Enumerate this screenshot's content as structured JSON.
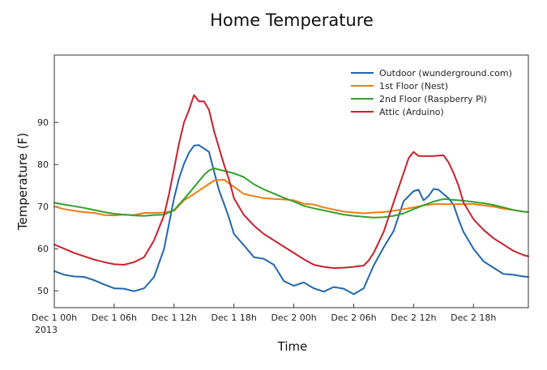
{
  "chart_data": {
    "type": "line",
    "title": "Home Temperature",
    "xlabel": "Time",
    "ylabel": "Temperature (F)",
    "xlim": [
      0,
      47.5
    ],
    "ylim": [
      46,
      106
    ],
    "x_unit": "hours since Dec 1 00h 2013",
    "x_ticks": [
      {
        "x": 0,
        "label": "Dec 1 00h",
        "sublabel": "2013"
      },
      {
        "x": 6,
        "label": "Dec 1 06h"
      },
      {
        "x": 12,
        "label": "Dec 1 12h"
      },
      {
        "x": 18,
        "label": "Dec 1 18h"
      },
      {
        "x": 24,
        "label": "Dec 2 00h"
      },
      {
        "x": 30,
        "label": "Dec 2 06h"
      },
      {
        "x": 36,
        "label": "Dec 2 12h"
      },
      {
        "x": 42,
        "label": "Dec 2 18h"
      }
    ],
    "y_ticks": [
      50,
      60,
      70,
      80,
      90
    ],
    "legend_position": "top-right",
    "series": [
      {
        "name": "Outdoor (wunderground.com)",
        "color": "#2166ac",
        "x": [
          0,
          1,
          2,
          3,
          4,
          5,
          6,
          7,
          8,
          9,
          10,
          11,
          11.5,
          12,
          12.5,
          13,
          13.5,
          14,
          14.5,
          15,
          15.5,
          16,
          16.5,
          17,
          17.5,
          18,
          19,
          20,
          21,
          22,
          23,
          24,
          25,
          26,
          27,
          28,
          29,
          30,
          31,
          31.5,
          32,
          33,
          34,
          35,
          36,
          36.5,
          37,
          37.5,
          38,
          38.5,
          39,
          39.5,
          40,
          40.5,
          41,
          42,
          43,
          44,
          45,
          46,
          47,
          47.5
        ],
        "y": [
          54.7,
          53.8,
          53.4,
          53.3,
          52.5,
          51.5,
          50.6,
          50.5,
          49.9,
          50.6,
          53.3,
          60.0,
          66.0,
          72.0,
          76.7,
          80.2,
          82.8,
          84.5,
          84.6,
          83.8,
          83.0,
          78.4,
          73.9,
          70.7,
          67.4,
          63.5,
          60.8,
          58.0,
          57.6,
          56.2,
          52.3,
          51.2,
          52.0,
          50.6,
          49.8,
          50.9,
          50.5,
          49.2,
          50.6,
          53.3,
          56.0,
          60.3,
          64.2,
          71.3,
          73.7,
          74.0,
          71.5,
          72.5,
          74.2,
          74.0,
          73.0,
          72.0,
          70.5,
          67.0,
          64.0,
          60.0,
          57.0,
          55.5,
          54.0,
          53.8,
          53.4,
          53.3
        ]
      },
      {
        "name": "1st Floor (Nest)",
        "color": "#ef7d0e",
        "x": [
          0,
          1,
          2,
          3,
          4,
          5,
          6,
          7,
          8,
          9,
          10,
          11,
          12,
          13,
          14,
          15,
          16,
          17,
          18,
          19,
          20,
          21,
          22,
          23,
          24,
          25,
          26,
          27,
          28,
          29,
          30,
          31,
          32,
          33,
          34,
          35,
          36,
          37,
          38,
          39,
          40,
          41,
          42,
          43,
          44,
          45,
          46,
          47,
          47.5
        ],
        "y": [
          70.0,
          69.4,
          69.0,
          68.7,
          68.5,
          68.0,
          67.9,
          68.1,
          68.0,
          68.5,
          68.5,
          68.6,
          69.0,
          71.5,
          73.0,
          74.6,
          76.2,
          76.4,
          74.7,
          73.0,
          72.5,
          72.0,
          71.8,
          71.7,
          71.5,
          70.7,
          70.5,
          69.8,
          69.3,
          68.8,
          68.6,
          68.4,
          68.6,
          68.7,
          69.0,
          69.4,
          69.8,
          70.3,
          70.6,
          70.6,
          70.6,
          70.6,
          70.6,
          70.3,
          70.0,
          69.5,
          69.2,
          68.8,
          68.7
        ]
      },
      {
        "name": "2nd Floor (Raspberry Pi)",
        "color": "#33a02c",
        "x": [
          0,
          1,
          2,
          3,
          4,
          5,
          6,
          7,
          8,
          9,
          10,
          11,
          12,
          13,
          14,
          15,
          15.5,
          16,
          17,
          18,
          19,
          20,
          21,
          22,
          23,
          24,
          25,
          26,
          27,
          28,
          29,
          30,
          31,
          32,
          33,
          34,
          35,
          36,
          37,
          38,
          39,
          40,
          41,
          42,
          43,
          44,
          45,
          46,
          47,
          47.5
        ],
        "y": [
          70.9,
          70.5,
          70.1,
          69.7,
          69.2,
          68.7,
          68.3,
          68.1,
          67.9,
          67.8,
          68.0,
          68.1,
          69.2,
          71.8,
          74.6,
          77.5,
          78.6,
          79.1,
          78.5,
          77.9,
          77.0,
          75.3,
          74.1,
          73.1,
          72.1,
          71.2,
          70.2,
          69.6,
          69.1,
          68.6,
          68.1,
          67.8,
          67.6,
          67.4,
          67.5,
          67.8,
          68.4,
          69.4,
          70.3,
          71.2,
          71.8,
          71.6,
          71.4,
          71.1,
          70.8,
          70.4,
          69.8,
          69.2,
          68.8,
          68.7
        ]
      },
      {
        "name": "Attic (Arduino)",
        "color": "#c8202c",
        "x": [
          0,
          1,
          2,
          3,
          4,
          5,
          6,
          7,
          8,
          9,
          10,
          11,
          11.5,
          12,
          12.5,
          13,
          13.5,
          14,
          14.5,
          15,
          15.5,
          16,
          16.5,
          17,
          17.5,
          18,
          19,
          20,
          21,
          22,
          23,
          24,
          25,
          26,
          27,
          28,
          29,
          30,
          31,
          31.5,
          32,
          33,
          34,
          35,
          35.5,
          36,
          36.5,
          37,
          38,
          39,
          39.5,
          40,
          40.5,
          41,
          42,
          43,
          44,
          45,
          46,
          47,
          47.5
        ],
        "y": [
          61.0,
          60.0,
          59.0,
          58.2,
          57.4,
          56.8,
          56.3,
          56.2,
          56.8,
          58.0,
          62.0,
          68.0,
          73.0,
          79.0,
          85.0,
          90.0,
          93.0,
          96.5,
          95.0,
          95.0,
          93.0,
          88.0,
          84.0,
          80.0,
          76.5,
          72.0,
          68.0,
          65.5,
          63.5,
          62.0,
          60.5,
          59.0,
          57.5,
          56.2,
          55.7,
          55.4,
          55.5,
          55.7,
          56.0,
          57.2,
          59.0,
          64.0,
          71.0,
          78.0,
          81.5,
          83.0,
          82.0,
          82.0,
          82.0,
          82.2,
          80.5,
          78.0,
          75.0,
          71.0,
          67.0,
          64.5,
          62.5,
          61.0,
          59.5,
          58.5,
          58.2
        ]
      }
    ]
  }
}
